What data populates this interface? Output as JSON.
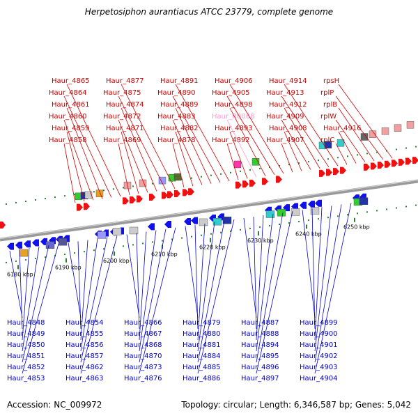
{
  "title": "Herpetosiphon aurantiacus ATCC 23779, complete genome",
  "footer": {
    "accession": "Accession: NC_009972",
    "summary": "Topology: circular; Length: 6,346,587 bp; Genes: 5,042"
  },
  "colors": {
    "forward_label": "#cc0000",
    "reverse_label": "#0000cc",
    "rna_label": "#ff99cc",
    "backbone": "#888888"
  },
  "ticks": [
    "6180 kbp",
    "6190 kbp",
    "6200 kbp",
    "6210 kbp",
    "6220 kbp",
    "6230 kbp",
    "6240 kbp",
    "6250 kbp"
  ],
  "forward_genes": [
    "Haur_4858",
    "Haur_4859",
    "Haur_4860",
    "Haur_4861",
    "Haur_4864",
    "Haur_4865",
    "Haur_4869",
    "Haur_4871",
    "Haur_4872",
    "Haur_4874",
    "Haur_4875",
    "Haur_4877",
    "Haur_4878",
    "Haur_4882",
    "Haur_4883",
    "Haur_4889",
    "Haur_4890",
    "Haur_4891",
    "Haur_4892",
    "Haur_4893",
    "Haur_R0068",
    "Haur_4898",
    "Haur_4905",
    "Haur_4906",
    "Haur_4907",
    "Haur_4908",
    "Haur_4909",
    "Haur_4912",
    "Haur_4913",
    "Haur_4914",
    "rplC",
    "Haur_4916",
    "rplW",
    "rplB",
    "rplP",
    "rpsH"
  ],
  "reverse_genes": [
    "Haur_4848",
    "Haur_4849",
    "Haur_4850",
    "Haur_4851",
    "Haur_4852",
    "Haur_4853",
    "Haur_4854",
    "Haur_4855",
    "Haur_4856",
    "Haur_4857",
    "Haur_4862",
    "Haur_4863",
    "Haur_4866",
    "Haur_4867",
    "Haur_4868",
    "Haur_4870",
    "Haur_4873",
    "Haur_4876",
    "Haur_4879",
    "Haur_4880",
    "Haur_4881",
    "Haur_4884",
    "Haur_4885",
    "Haur_4886",
    "Haur_4887",
    "Haur_4888",
    "Haur_4894",
    "Haur_4895",
    "Haur_4896",
    "Haur_4897",
    "Haur_4899",
    "Haur_4900",
    "Haur_4901",
    "Haur_4902",
    "Haur_4903",
    "Haur_4904"
  ]
}
